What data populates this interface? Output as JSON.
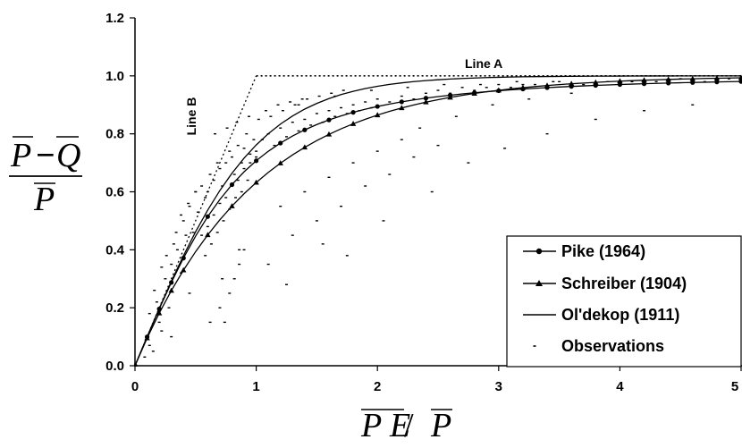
{
  "chart_data": {
    "type": "scatter",
    "title": "",
    "xlim": [
      0,
      5
    ],
    "ylim": [
      0,
      1.2
    ],
    "x_ticks": [
      0,
      1,
      2,
      3,
      4,
      5
    ],
    "y_ticks": [
      0.0,
      0.2,
      0.4,
      0.6,
      0.8,
      1.0,
      1.2
    ],
    "x_tick_labels": [
      "0",
      "1",
      "2",
      "3",
      "4",
      "5"
    ],
    "y_tick_labels": [
      "0.0",
      "0.2",
      "0.4",
      "0.6",
      "0.8",
      "1.0",
      "1.2"
    ],
    "xlabel": {
      "left": "P E",
      "sep": " / ",
      "right": "P"
    },
    "ylabel": {
      "num_a": "P",
      "num_op": "−",
      "num_b": "Q",
      "den": "P"
    },
    "grid": false,
    "legend_position": "bottom-right",
    "annotations": {
      "line_a": "Line A",
      "line_b": "Line B"
    },
    "reference_lines": {
      "line_a": {
        "x": [
          1,
          5
        ],
        "y": [
          1,
          1
        ]
      },
      "line_b": {
        "x": [
          0,
          1
        ],
        "y": [
          0,
          1
        ]
      }
    },
    "series": [
      {
        "name": "Pike (1964)",
        "marker": "circle",
        "x": [
          0,
          0.1,
          0.2,
          0.3,
          0.4,
          0.5,
          0.6,
          0.7,
          0.8,
          0.9,
          1.0,
          1.1,
          1.2,
          1.3,
          1.4,
          1.5,
          1.6,
          1.7,
          1.8,
          1.9,
          2.0,
          2.1,
          2.2,
          2.3,
          2.4,
          2.5,
          2.6,
          2.7,
          2.8,
          2.9,
          3.0,
          3.1,
          3.2,
          3.3,
          3.4,
          3.5,
          3.6,
          3.7,
          3.8,
          3.9,
          4.0,
          4.1,
          4.2,
          4.3,
          4.4,
          4.5,
          4.6,
          4.7,
          4.8,
          4.9,
          5.0
        ],
        "y": [
          0.0,
          0.0995,
          0.1961,
          0.2873,
          0.3714,
          0.4472,
          0.5145,
          0.5735,
          0.6247,
          0.669,
          0.7071,
          0.7399,
          0.7682,
          0.7926,
          0.8137,
          0.8321,
          0.848,
          0.8619,
          0.8742,
          0.8849,
          0.8944,
          0.9028,
          0.9104,
          0.9171,
          0.9231,
          0.9285,
          0.9333,
          0.9377,
          0.9417,
          0.9453,
          0.9487,
          0.9517,
          0.9545,
          0.9571,
          0.9594,
          0.9615,
          0.9635,
          0.9654,
          0.9671,
          0.9686,
          0.9701,
          0.9715,
          0.9728,
          0.974,
          0.9751,
          0.9762,
          0.9772,
          0.9781,
          0.979,
          0.9798,
          0.9806
        ]
      },
      {
        "name": "Schreiber (1904)",
        "marker": "triangle",
        "x": [
          0,
          0.1,
          0.2,
          0.3,
          0.4,
          0.5,
          0.6,
          0.7,
          0.8,
          0.9,
          1.0,
          1.1,
          1.2,
          1.3,
          1.4,
          1.5,
          1.6,
          1.7,
          1.8,
          1.9,
          2.0,
          2.1,
          2.2,
          2.3,
          2.4,
          2.5,
          2.6,
          2.7,
          2.8,
          2.9,
          3.0,
          3.1,
          3.2,
          3.3,
          3.4,
          3.5,
          3.6,
          3.7,
          3.8,
          3.9,
          4.0,
          4.1,
          4.2,
          4.3,
          4.4,
          4.5,
          4.6,
          4.7,
          4.8,
          4.9,
          5.0
        ],
        "y": [
          0.0,
          0.0952,
          0.1813,
          0.2592,
          0.3297,
          0.3935,
          0.4512,
          0.5034,
          0.5507,
          0.5934,
          0.6321,
          0.6671,
          0.6988,
          0.7275,
          0.7534,
          0.7769,
          0.7981,
          0.8173,
          0.8347,
          0.8504,
          0.8647,
          0.8775,
          0.8892,
          0.8997,
          0.9093,
          0.9179,
          0.9257,
          0.9328,
          0.9392,
          0.945,
          0.9502,
          0.955,
          0.9592,
          0.9631,
          0.9666,
          0.9698,
          0.9727,
          0.9753,
          0.9776,
          0.9798,
          0.9817,
          0.9834,
          0.985,
          0.9864,
          0.9877,
          0.9889,
          0.9899,
          0.9909,
          0.9918,
          0.9926,
          0.9933
        ]
      },
      {
        "name": "Ol'dekop (1911)",
        "marker": "none",
        "x": [
          0,
          0.1,
          0.2,
          0.3,
          0.4,
          0.5,
          0.6,
          0.7,
          0.8,
          0.9,
          1.0,
          1.1,
          1.2,
          1.3,
          1.4,
          1.5,
          1.6,
          1.7,
          1.8,
          1.9,
          2.0,
          2.1,
          2.2,
          2.3,
          2.4,
          2.5,
          2.6,
          2.7,
          2.8,
          2.9,
          3.0,
          3.1,
          3.2,
          3.3,
          3.4,
          3.5,
          3.6,
          3.7,
          3.8,
          3.9,
          4.0,
          4.1,
          4.2,
          4.3,
          4.4,
          4.5,
          4.6,
          4.7,
          4.8,
          4.9,
          5.0
        ],
        "y": [
          0.0,
          0.0997,
          0.1974,
          0.2913,
          0.3799,
          0.4621,
          0.537,
          0.6044,
          0.664,
          0.7163,
          0.7616,
          0.8005,
          0.8337,
          0.8617,
          0.8854,
          0.9051,
          0.9217,
          0.9354,
          0.9468,
          0.9562,
          0.964,
          0.9705,
          0.9758,
          0.9801,
          0.9837,
          0.9866,
          0.989,
          0.991,
          0.9926,
          0.994,
          0.9951,
          0.996,
          0.9967,
          0.9973,
          0.9978,
          0.9982,
          0.9985,
          0.9988,
          0.999,
          0.9992,
          0.9993,
          0.9995,
          0.9996,
          0.9996,
          0.9997,
          0.9998,
          0.9998,
          0.9998,
          0.9999,
          0.9999,
          0.9999
        ]
      },
      {
        "name": "Observations",
        "marker": "dot",
        "x": [
          0.08,
          0.12,
          0.15,
          0.18,
          0.2,
          0.22,
          0.25,
          0.28,
          0.3,
          0.32,
          0.35,
          0.38,
          0.4,
          0.42,
          0.45,
          0.48,
          0.5,
          0.52,
          0.55,
          0.58,
          0.6,
          0.62,
          0.65,
          0.68,
          0.7,
          0.72,
          0.75,
          0.78,
          0.8,
          0.82,
          0.85,
          0.88,
          0.9,
          0.92,
          0.95,
          0.98,
          1.0,
          1.05,
          1.1,
          1.15,
          1.2,
          1.25,
          1.3,
          1.35,
          1.4,
          1.45,
          1.5,
          1.55,
          1.6,
          1.65,
          1.7,
          1.75,
          1.8,
          1.85,
          1.9,
          1.95,
          2.0,
          2.1,
          2.2,
          2.3,
          2.4,
          2.5,
          2.6,
          2.7,
          2.8,
          2.9,
          3.0,
          3.1,
          3.2,
          3.3,
          3.5,
          3.7,
          3.9,
          4.1,
          4.3,
          4.5,
          4.7,
          4.9,
          0.55,
          0.6,
          0.65,
          0.7,
          0.75,
          0.8,
          0.85,
          0.9,
          0.95,
          1.0,
          0.58,
          0.63,
          0.68,
          0.73,
          0.78,
          0.83,
          0.88,
          0.93,
          1.2,
          1.4,
          1.6,
          1.8,
          2.0,
          2.2,
          1.3,
          1.5,
          1.7,
          1.9,
          2.1,
          2.3,
          2.5,
          0.3,
          0.45,
          0.62,
          0.72,
          0.86,
          1.1,
          1.25,
          1.55,
          1.75,
          2.05,
          2.45,
          2.75,
          3.05,
          3.4,
          3.8,
          4.2,
          4.6,
          2.35,
          2.65,
          2.95,
          3.25,
          3.6,
          1.02,
          1.12,
          1.22,
          1.32,
          1.42,
          1.52,
          1.62,
          1.72,
          0.66,
          0.76,
          0.84,
          0.94,
          1.08,
          1.18,
          1.28,
          1.38,
          0.12,
          0.16,
          0.22,
          0.26,
          0.34,
          0.38,
          0.44,
          0.5,
          0.7,
          0.74,
          0.78,
          0.82,
          0.86,
          0.9,
          1.35,
          1.65,
          1.95,
          2.25,
          2.55,
          2.85,
          3.15,
          3.45
        ],
        "y": [
          0.03,
          0.07,
          0.05,
          0.22,
          0.15,
          0.12,
          0.3,
          0.2,
          0.35,
          0.42,
          0.4,
          0.32,
          0.5,
          0.45,
          0.55,
          0.46,
          0.6,
          0.53,
          0.62,
          0.58,
          0.6,
          0.66,
          0.64,
          0.7,
          0.68,
          0.62,
          0.7,
          0.74,
          0.72,
          0.66,
          0.76,
          0.7,
          0.75,
          0.8,
          0.73,
          0.78,
          0.74,
          0.78,
          0.8,
          0.76,
          0.82,
          0.79,
          0.84,
          0.81,
          0.85,
          0.83,
          0.87,
          0.84,
          0.88,
          0.86,
          0.89,
          0.87,
          0.9,
          0.88,
          0.91,
          0.89,
          0.92,
          0.91,
          0.93,
          0.92,
          0.94,
          0.95,
          0.94,
          0.96,
          0.95,
          0.96,
          0.97,
          0.96,
          0.97,
          0.97,
          0.98,
          0.97,
          0.98,
          0.98,
          0.98,
          0.99,
          0.98,
          0.99,
          0.45,
          0.48,
          0.52,
          0.56,
          0.58,
          0.62,
          0.64,
          0.68,
          0.7,
          0.72,
          0.38,
          0.42,
          0.46,
          0.5,
          0.54,
          0.58,
          0.6,
          0.64,
          0.55,
          0.6,
          0.65,
          0.7,
          0.74,
          0.78,
          0.45,
          0.5,
          0.55,
          0.62,
          0.66,
          0.72,
          0.76,
          0.1,
          0.25,
          0.15,
          0.3,
          0.4,
          0.35,
          0.28,
          0.42,
          0.38,
          0.5,
          0.6,
          0.7,
          0.75,
          0.8,
          0.85,
          0.88,
          0.9,
          0.82,
          0.86,
          0.9,
          0.92,
          0.94,
          0.85,
          0.86,
          0.88,
          0.9,
          0.92,
          0.93,
          0.94,
          0.95,
          0.8,
          0.82,
          0.84,
          0.86,
          0.88,
          0.9,
          0.91,
          0.92,
          0.18,
          0.26,
          0.34,
          0.38,
          0.46,
          0.52,
          0.56,
          0.6,
          0.2,
          0.15,
          0.25,
          0.3,
          0.35,
          0.4,
          0.9,
          0.93,
          0.95,
          0.96,
          0.97,
          0.97,
          0.98,
          0.98
        ]
      }
    ]
  }
}
